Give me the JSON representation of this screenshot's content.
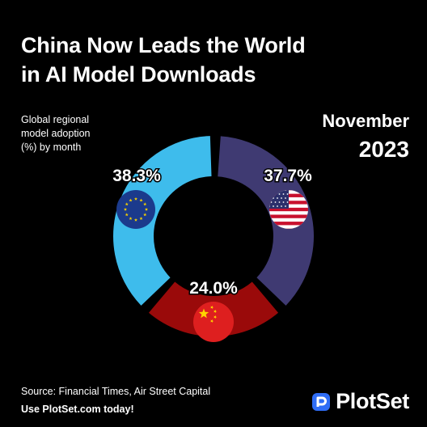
{
  "title": {
    "line1": "China Now Leads the World",
    "line2": "in AI Model Downloads"
  },
  "subtitle": {
    "line1": "Global regional",
    "line2": "model adoption",
    "line3": "(%) by month"
  },
  "period": {
    "month": "November",
    "year": "2023"
  },
  "footer": {
    "source": "Source: Financial Times, Air Street Capital",
    "cta": "Use PlotSet.com today!"
  },
  "brand": {
    "name": "PlotSet",
    "logo_icon": "plotset-logo-icon"
  },
  "chart_data": {
    "type": "pie",
    "variant": "donut",
    "categories": [
      "EU",
      "US",
      "China"
    ],
    "values": [
      38.3,
      37.7,
      24.0
    ],
    "labels": [
      "38.3%",
      "37.7%",
      "24.0%"
    ],
    "unit": "%",
    "colors": [
      "#3ebcec",
      "#3f3a72",
      "#9a0a0a"
    ],
    "icons": [
      "eu-flag-icon",
      "us-flag-icon",
      "china-flag-icon"
    ]
  }
}
